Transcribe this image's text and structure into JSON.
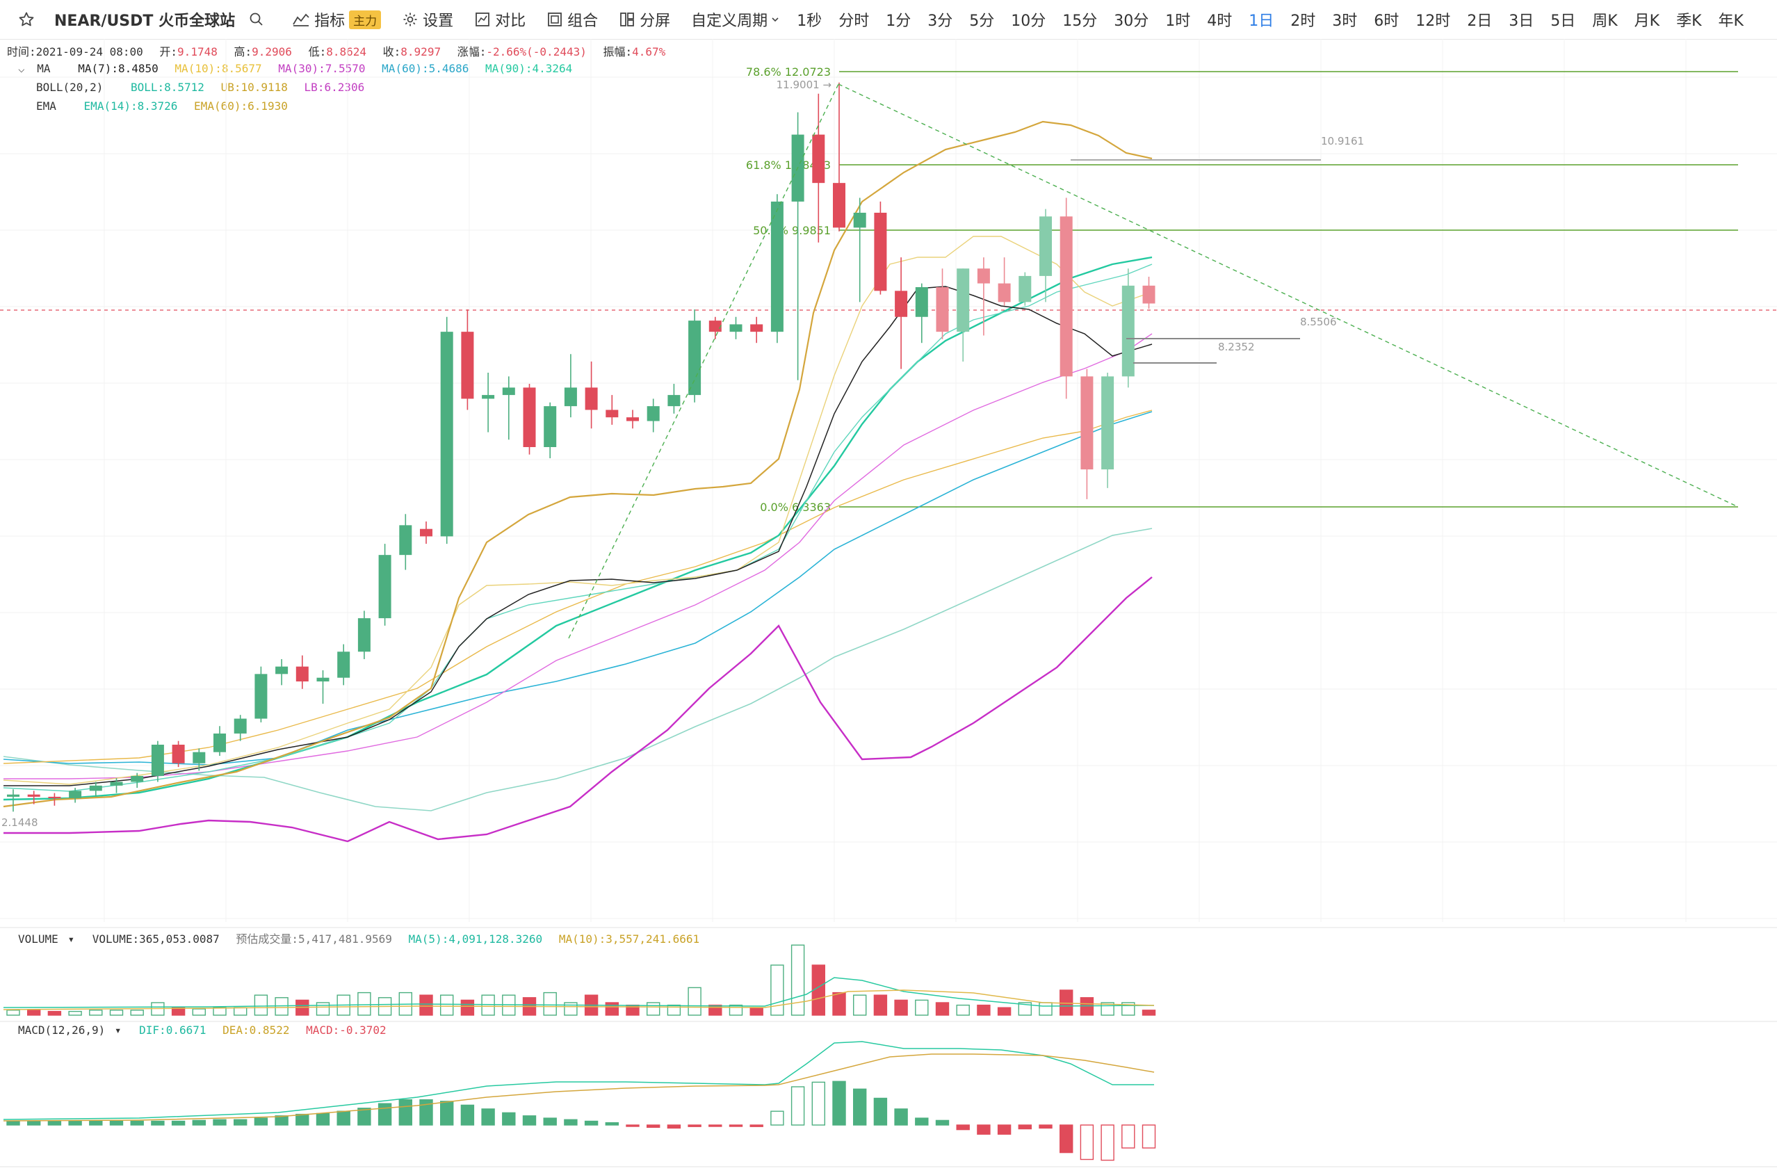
{
  "toolbar": {
    "pair": "NEAR/USDT 火币全球站",
    "indicators_label": "指标",
    "indicators_badge": "主力",
    "settings_label": "设置",
    "compare_label": "对比",
    "combine_label": "组合",
    "split_label": "分屏",
    "custom_period_label": "自定义周期",
    "periods": [
      "1秒",
      "分时",
      "1分",
      "3分",
      "5分",
      "10分",
      "15分",
      "30分",
      "1时",
      "4时",
      "1日",
      "2时",
      "3时",
      "6时",
      "12时",
      "2日",
      "3日",
      "5日",
      "周K",
      "月K",
      "季K",
      "年K"
    ],
    "active_period": "1日"
  },
  "ohlc": {
    "time_label": "时间:",
    "time": "2021-09-24 08:00",
    "open_label": "开:",
    "open": "9.1748",
    "high_label": "高:",
    "high": "9.2906",
    "low_label": "低:",
    "low": "8.8624",
    "close_label": "收:",
    "close": "8.9297",
    "change_label": "涨幅:",
    "change": "-2.66%(-0.2443)",
    "amp_label": "振幅:",
    "amp": "4.67%"
  },
  "ma_line": {
    "name": "MA",
    "ma7": "MA(7):8.4850",
    "ma10": "MA(10):8.5677",
    "ma30": "MA(30):7.5570",
    "ma60": "MA(60):5.4686",
    "ma90": "MA(90):4.3264"
  },
  "boll_line": {
    "name": "BOLL(20,2)",
    "boll": "BOLL:8.5712",
    "ub": "UB:10.9118",
    "lb": "LB:6.2306"
  },
  "ema_line": {
    "name": "EMA",
    "ema14": "EMA(14):8.3726",
    "ema60": "EMA(60):6.1930"
  },
  "fib_labels": [
    "78.6% 12.0723",
    "61.8% 10.8463",
    "50.0% 9.9851",
    "0.0% 6.3363"
  ],
  "price_marks": {
    "high_mark": "11.9001 →",
    "low_mark": "2.1448",
    "line_10_9161": "10.9161",
    "line_8_5506": "8.5506",
    "line_8_2352": "8.2352"
  },
  "volume_line": {
    "name": "VOLUME",
    "volume": "VOLUME:365,053.0087",
    "est": "预估成交量:5,417,481.9569",
    "ma5": "MA(5):4,091,128.3260",
    "ma10": "MA(10):3,557,241.6661"
  },
  "macd_line": {
    "name": "MACD(12,26,9)",
    "dif": "DIF:0.6671",
    "dea": "DEA:0.8522",
    "macd": "MACD:-0.3702"
  },
  "colors": {
    "up": "#4caf80",
    "down": "#e04b5a",
    "up_light": "#86ccab",
    "down_light": "#ec8a94",
    "fib": "#5aa02c",
    "accent": "#2e7ee6"
  },
  "chart_data": {
    "type": "candlestick",
    "candles": [
      [
        2.3,
        2.4,
        2.1,
        2.33
      ],
      [
        2.33,
        2.38,
        2.2,
        2.3
      ],
      [
        2.3,
        2.35,
        2.18,
        2.28
      ],
      [
        2.28,
        2.42,
        2.22,
        2.38
      ],
      [
        2.38,
        2.5,
        2.3,
        2.45
      ],
      [
        2.45,
        2.55,
        2.35,
        2.5
      ],
      [
        2.5,
        2.62,
        2.42,
        2.58
      ],
      [
        2.58,
        3.05,
        2.5,
        3.0
      ],
      [
        3.0,
        3.05,
        2.7,
        2.75
      ],
      [
        2.75,
        2.95,
        2.65,
        2.9
      ],
      [
        2.9,
        3.25,
        2.85,
        3.15
      ],
      [
        3.15,
        3.4,
        3.05,
        3.35
      ],
      [
        3.35,
        4.05,
        3.3,
        3.95
      ],
      [
        3.95,
        4.15,
        3.8,
        4.05
      ],
      [
        4.05,
        4.2,
        3.75,
        3.85
      ],
      [
        3.85,
        4.0,
        3.55,
        3.9
      ],
      [
        3.9,
        4.35,
        3.8,
        4.25
      ],
      [
        4.25,
        4.8,
        4.15,
        4.7
      ],
      [
        4.7,
        5.7,
        4.6,
        5.55
      ],
      [
        5.55,
        6.1,
        5.35,
        5.95
      ],
      [
        5.9,
        6.0,
        5.7,
        5.8
      ],
      [
        5.8,
        8.75,
        5.7,
        8.55
      ],
      [
        8.55,
        8.85,
        7.5,
        7.65
      ],
      [
        7.65,
        8.0,
        7.2,
        7.7
      ],
      [
        7.7,
        7.95,
        7.1,
        7.8
      ],
      [
        7.8,
        7.85,
        6.9,
        7.0
      ],
      [
        7.0,
        7.6,
        6.85,
        7.55
      ],
      [
        7.55,
        8.25,
        7.4,
        7.8
      ],
      [
        7.8,
        8.15,
        7.25,
        7.5
      ],
      [
        7.5,
        7.7,
        7.3,
        7.4
      ],
      [
        7.4,
        7.5,
        7.25,
        7.35
      ],
      [
        7.35,
        7.65,
        7.2,
        7.55
      ],
      [
        7.55,
        7.85,
        7.45,
        7.7
      ],
      [
        7.7,
        8.85,
        7.6,
        8.7
      ],
      [
        8.7,
        8.75,
        8.45,
        8.55
      ],
      [
        8.55,
        8.75,
        8.45,
        8.65
      ],
      [
        8.65,
        8.75,
        8.4,
        8.55
      ],
      [
        8.55,
        10.4,
        8.4,
        10.3
      ],
      [
        10.3,
        11.5,
        7.9,
        11.2
      ],
      [
        11.2,
        11.75,
        9.75,
        10.55
      ],
      [
        10.55,
        11.9,
        9.9,
        9.95
      ],
      [
        9.95,
        10.35,
        8.95,
        10.15
      ],
      [
        10.15,
        10.3,
        9.05,
        9.1
      ],
      [
        9.1,
        9.55,
        8.05,
        8.75
      ],
      [
        8.75,
        9.2,
        8.4,
        9.15
      ],
      [
        9.15,
        9.4,
        8.45,
        8.55
      ],
      [
        8.55,
        9.4,
        8.15,
        9.4
      ],
      [
        9.4,
        9.55,
        8.5,
        9.2
      ],
      [
        9.2,
        9.55,
        8.9,
        8.95
      ],
      [
        8.95,
        9.35,
        8.9,
        9.3
      ],
      [
        9.3,
        10.2,
        8.95,
        10.1
      ],
      [
        10.1,
        10.35,
        7.65,
        7.95
      ],
      [
        7.95,
        8.05,
        6.3,
        6.7
      ],
      [
        6.7,
        8.0,
        6.45,
        7.95
      ],
      [
        7.95,
        9.4,
        7.8,
        9.17
      ],
      [
        9.17,
        9.29,
        8.86,
        8.93
      ]
    ],
    "volume": [
      2,
      2,
      1.5,
      1.5,
      2,
      2,
      2,
      5,
      3,
      2.5,
      3,
      3,
      8,
      7,
      6,
      5,
      8,
      9,
      7,
      9,
      8,
      8,
      6,
      8,
      8,
      7,
      9,
      5,
      8,
      5,
      4,
      5,
      4,
      11,
      4,
      4,
      3,
      20,
      28,
      20,
      9,
      8,
      8,
      6,
      6,
      5,
      4,
      4,
      3,
      5,
      5,
      10,
      7,
      5,
      5,
      2
    ],
    "macd_hist": [
      0.05,
      0.05,
      0.05,
      0.05,
      0.05,
      0.05,
      0.05,
      0.05,
      0.05,
      0.06,
      0.07,
      0.07,
      0.09,
      0.12,
      0.14,
      0.15,
      0.18,
      0.22,
      0.28,
      0.33,
      0.33,
      0.31,
      0.26,
      0.21,
      0.16,
      0.12,
      0.09,
      0.07,
      0.05,
      0.03,
      -0.01,
      -0.03,
      -0.04,
      -0.02,
      -0.01,
      -0.01,
      -0.02,
      0.18,
      0.5,
      0.56,
      0.57,
      0.47,
      0.35,
      0.21,
      0.09,
      0.06,
      -0.06,
      -0.12,
      -0.12,
      -0.05,
      -0.04,
      -0.36,
      -0.45,
      -0.46,
      -0.3,
      -0.3
    ],
    "yrange": [
      2.0,
      13.0
    ]
  }
}
